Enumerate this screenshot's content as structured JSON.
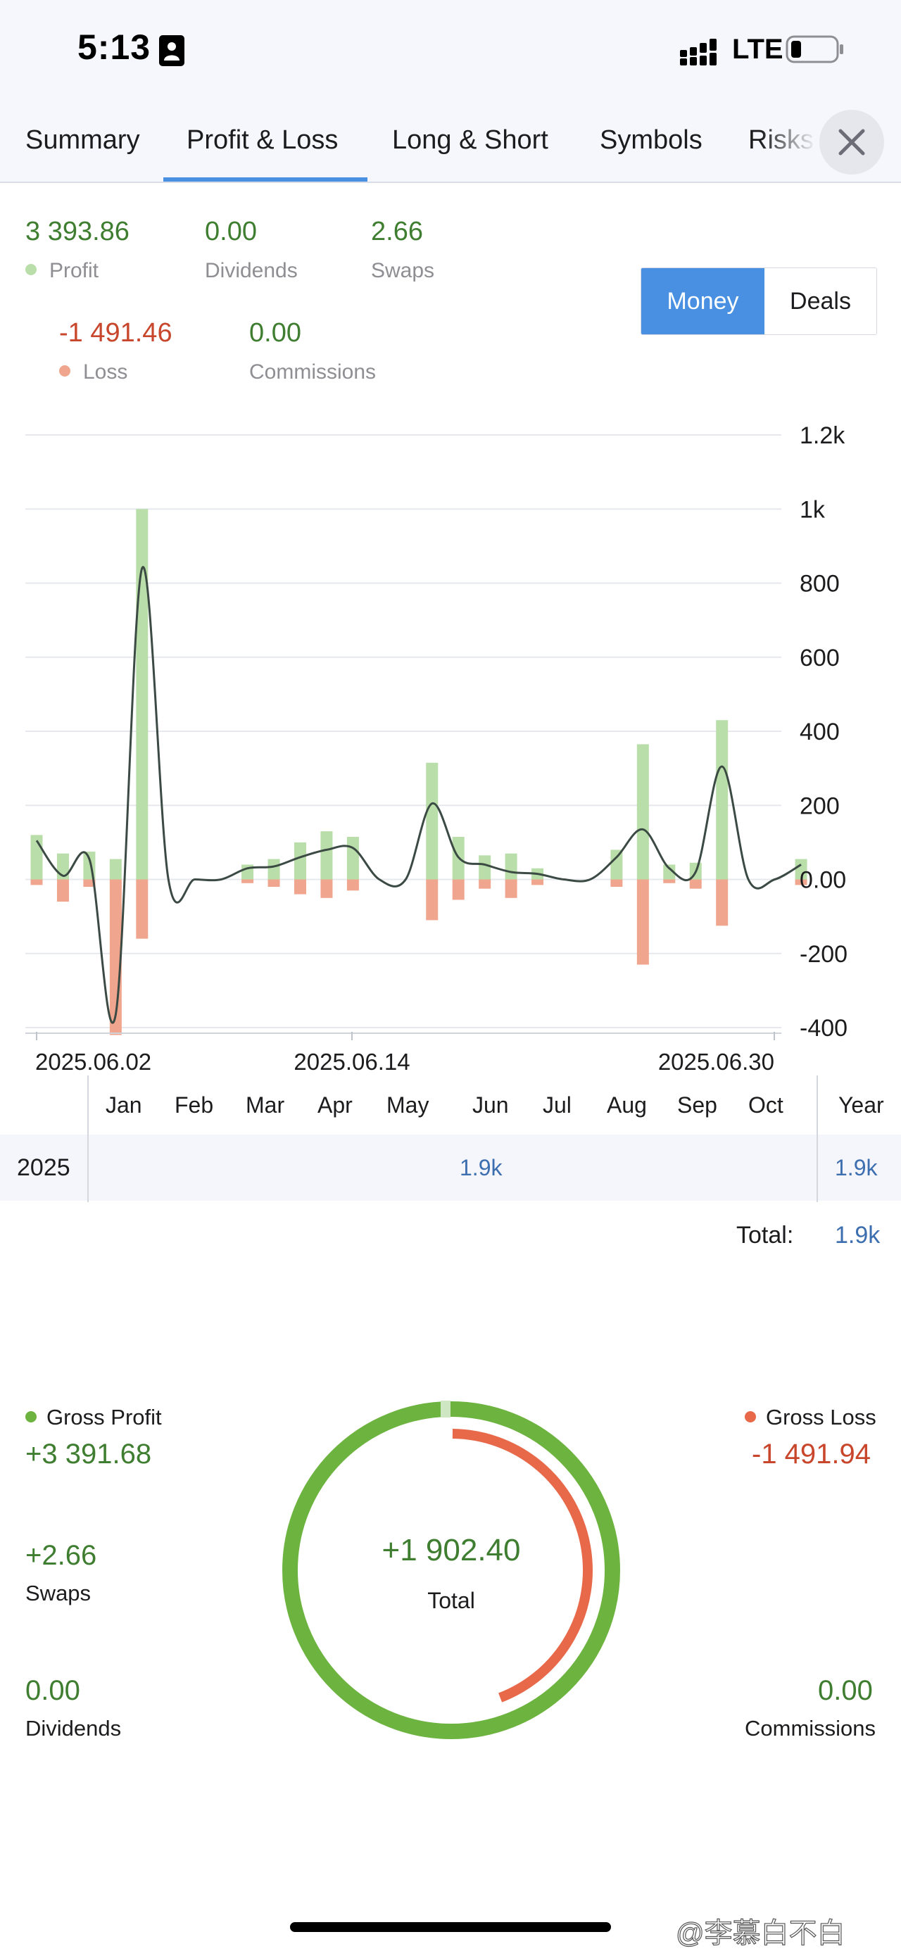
{
  "status_bar": {
    "time": "5:13",
    "network": "LTE"
  },
  "tabs": [
    {
      "label": "Summary",
      "active": false
    },
    {
      "label": "Profit & Loss",
      "active": true
    },
    {
      "label": "Long & Short",
      "active": false
    },
    {
      "label": "Symbols",
      "active": false
    },
    {
      "label": "Risks",
      "active": false
    }
  ],
  "summary": {
    "profit": {
      "value": "3 393.86",
      "label": "Profit"
    },
    "dividends": {
      "value": "0.00",
      "label": "Dividends"
    },
    "swaps": {
      "value": "2.66",
      "label": "Swaps"
    },
    "loss": {
      "value": "-1 491.46",
      "label": "Loss"
    },
    "commissions": {
      "value": "0.00",
      "label": "Commissions"
    }
  },
  "toggle": {
    "money": "Money",
    "deals": "Deals",
    "selected": "Money"
  },
  "colors": {
    "profit_bar": "#b9dea9",
    "loss_bar": "#f0a58e",
    "line": "#3c4a44",
    "accent": "#4a90e2",
    "donut_green": "#6db33f",
    "donut_orange": "#e8694a",
    "profit_text": "#3f7e30",
    "loss_text": "#c8472c"
  },
  "chart_data": {
    "type": "bar",
    "title": "",
    "xlabel": "",
    "ylabel": "",
    "ylim": [
      -400,
      1200
    ],
    "y_ticks": [
      "1.2k",
      "1k",
      "800",
      "600",
      "400",
      "200",
      "0.00",
      "-200",
      "-400"
    ],
    "x_ticks": [
      "2025.06.02",
      "2025.06.14",
      "2025.06.30"
    ],
    "series": [
      {
        "name": "Profit",
        "values": [
          120,
          70,
          75,
          55,
          1000,
          0,
          0,
          0,
          40,
          55,
          100,
          130,
          115,
          0,
          0,
          315,
          115,
          65,
          70,
          30,
          0,
          0,
          80,
          365,
          40,
          45,
          430,
          0,
          0,
          55
        ]
      },
      {
        "name": "Loss",
        "values": [
          -15,
          -60,
          -20,
          -420,
          -160,
          0,
          0,
          0,
          -10,
          -20,
          -40,
          -50,
          -30,
          0,
          0,
          -110,
          -55,
          -25,
          -50,
          -15,
          0,
          0,
          -20,
          -230,
          -10,
          -25,
          -125,
          0,
          0,
          -15
        ]
      },
      {
        "name": "Net",
        "values": [
          105,
          10,
          55,
          -365,
          840,
          0,
          0,
          0,
          30,
          35,
          60,
          80,
          85,
          0,
          0,
          205,
          60,
          40,
          20,
          15,
          0,
          0,
          60,
          135,
          30,
          20,
          305,
          0,
          0,
          40
        ]
      }
    ]
  },
  "month_table": {
    "months": [
      "Jan",
      "Feb",
      "Mar",
      "Apr",
      "May",
      "Jun",
      "Jul",
      "Aug",
      "Sep",
      "Oct"
    ],
    "year_header": "Year",
    "year": "2025",
    "row_value": "1.9k",
    "year_value": "1.9k",
    "total_label": "Total:",
    "total_value": "1.9k"
  },
  "gross": {
    "gross_profit_label": "Gross Profit",
    "gross_profit_value": "+3 391.68",
    "gross_loss_label": "Gross Loss",
    "gross_loss_value": "-1 491.94",
    "swaps_value": "+2.66",
    "swaps_label": "Swaps",
    "dividends_value": "0.00",
    "dividends_label": "Dividends",
    "commissions_value": "0.00",
    "commissions_label": "Commissions",
    "total_value": "+1 902.40",
    "total_label": "Total",
    "loss_fraction": 0.44
  },
  "watermark": "@李慕白不白"
}
